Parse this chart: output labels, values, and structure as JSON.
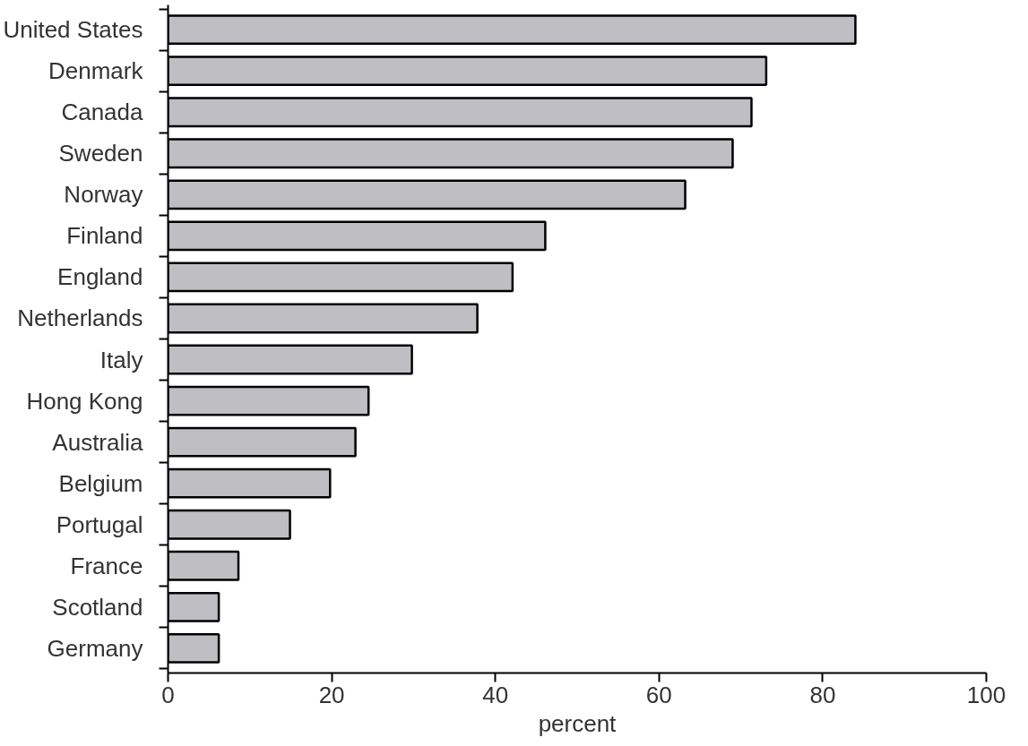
{
  "chart_data": {
    "type": "bar",
    "orientation": "horizontal",
    "xlabel": "percent",
    "categories": [
      "United States",
      "Denmark",
      "Canada",
      "Sweden",
      "Norway",
      "Finland",
      "England",
      "Netherlands",
      "Italy",
      "Hong Kong",
      "Australia",
      "Belgium",
      "Portugal",
      "France",
      "Scotland",
      "Germany"
    ],
    "values": [
      84,
      73.1,
      71.3,
      69,
      63.2,
      46.1,
      42.1,
      37.8,
      29.8,
      24.5,
      22.9,
      19.8,
      14.9,
      8.6,
      6.2,
      6.2
    ],
    "color": "#bfbfc3",
    "xlim": [
      0,
      100
    ],
    "xticks": [
      0,
      20,
      40,
      60,
      80,
      100
    ],
    "grid": false
  }
}
